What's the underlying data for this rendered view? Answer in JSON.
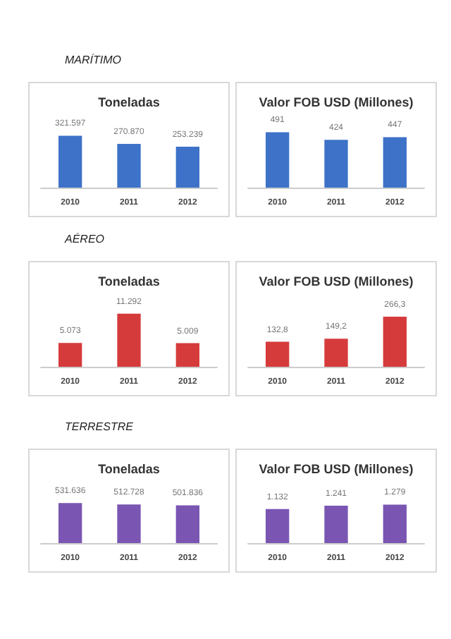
{
  "chart_data": [
    {
      "type": "bar",
      "annotations": [
        "MARÍTIMO"
      ],
      "title": "Toneladas",
      "categories": [
        "2010",
        "2011",
        "2012"
      ],
      "values": [
        321597,
        270870,
        253239
      ],
      "value_labels": [
        "321.597",
        "270.870",
        "253.239"
      ],
      "color": "#3d72c8"
    },
    {
      "type": "bar",
      "title": "Valor FOB USD (Millones)",
      "categories": [
        "2010",
        "2011",
        "2012"
      ],
      "values": [
        491,
        424,
        447
      ],
      "value_labels": [
        "491",
        "424",
        "447"
      ],
      "color": "#3d72c8"
    },
    {
      "type": "bar",
      "annotations": [
        "AÉREO"
      ],
      "title": "Toneladas",
      "categories": [
        "2010",
        "2011",
        "2012"
      ],
      "values": [
        5073,
        11292,
        5009
      ],
      "value_labels": [
        "5.073",
        "11.292",
        "5.009"
      ],
      "color": "#d63b3b"
    },
    {
      "type": "bar",
      "title": "Valor FOB USD (Millones)",
      "categories": [
        "2010",
        "2011",
        "2012"
      ],
      "values": [
        132.8,
        149.2,
        266.3
      ],
      "value_labels": [
        "132,8",
        "149,2",
        "266,3"
      ],
      "color": "#d63b3b"
    },
    {
      "type": "bar",
      "annotations": [
        "TERRESTRE"
      ],
      "title": "Toneladas",
      "categories": [
        "2010",
        "2011",
        "2012"
      ],
      "values": [
        531636,
        512728,
        501836
      ],
      "value_labels": [
        "531.636",
        "512.728",
        "501.836"
      ],
      "color": "#7a56b2"
    },
    {
      "type": "bar",
      "title": "Valor FOB USD (Millones)",
      "categories": [
        "2010",
        "2011",
        "2012"
      ],
      "values": [
        1132,
        1241,
        1279
      ],
      "value_labels": [
        "1.132",
        "1.241",
        "1.279"
      ],
      "color": "#7a56b2"
    }
  ]
}
